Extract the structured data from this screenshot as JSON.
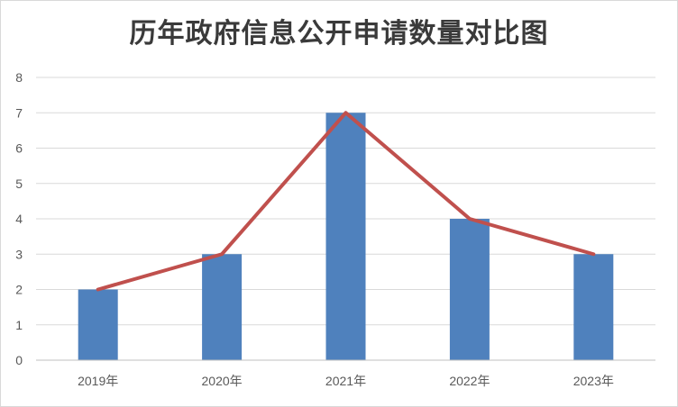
{
  "chart_data": {
    "type": "bar",
    "title": "历年政府信息公开申请数量对比图",
    "categories": [
      "2019年",
      "2020年",
      "2021年",
      "2022年",
      "2023年"
    ],
    "values": [
      2,
      3,
      7,
      4,
      3
    ],
    "line_values": [
      2,
      3,
      7,
      4,
      3
    ],
    "ylim": [
      0,
      8
    ],
    "yticks": [
      0,
      1,
      2,
      3,
      4,
      5,
      6,
      7,
      8
    ],
    "grid": true,
    "legend": "none",
    "colors": {
      "bar": "#4f81bd",
      "line": "#c0504d",
      "grid": "#d9d9d9"
    }
  }
}
